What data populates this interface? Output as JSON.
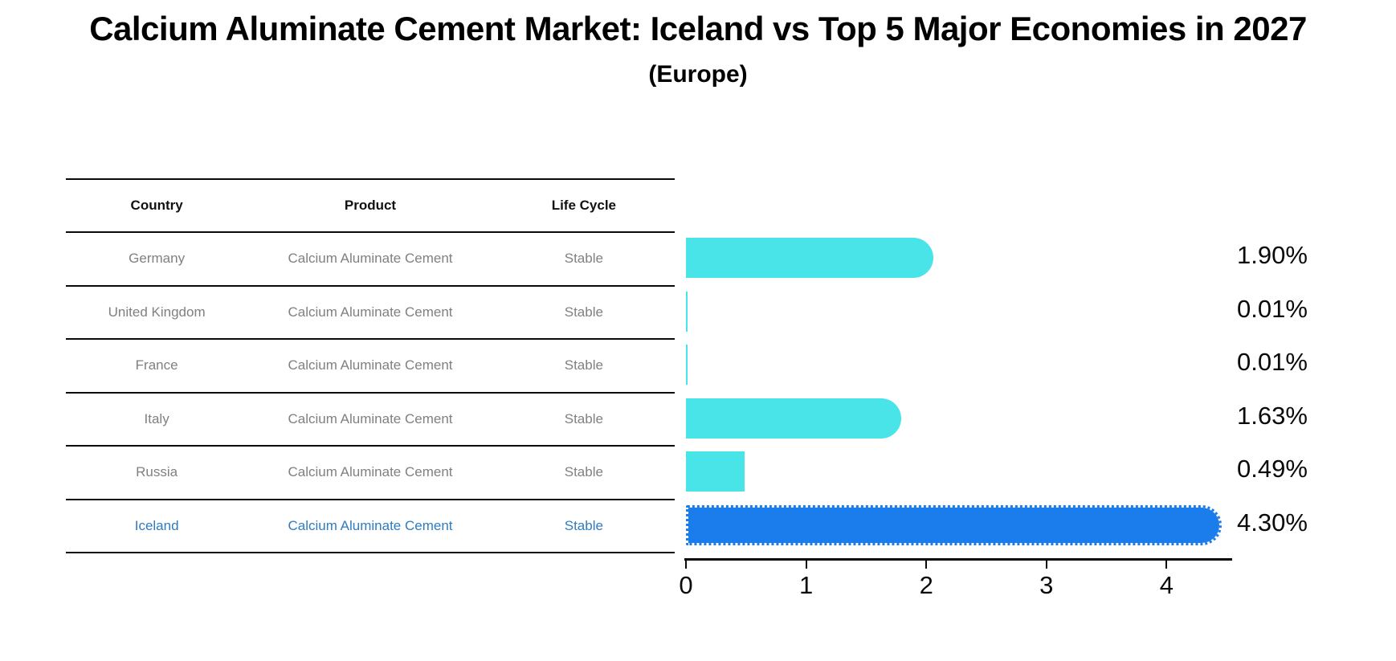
{
  "title": "Calcium Aluminate Cement Market: Iceland vs Top 5 Major Economies in 2027",
  "subtitle": "(Europe)",
  "table": {
    "headers": [
      "Country",
      "Product",
      "Life Cycle"
    ],
    "rows": [
      {
        "country": "Germany",
        "product": "Calcium Aluminate Cement",
        "life_cycle": "Stable",
        "highlight": false
      },
      {
        "country": "United Kingdom",
        "product": "Calcium Aluminate Cement",
        "life_cycle": "Stable",
        "highlight": false
      },
      {
        "country": "France",
        "product": "Calcium Aluminate Cement",
        "life_cycle": "Stable",
        "highlight": false
      },
      {
        "country": "Italy",
        "product": "Calcium Aluminate Cement",
        "life_cycle": "Stable",
        "highlight": false
      },
      {
        "country": "Russia",
        "product": "Calcium Aluminate Cement",
        "life_cycle": "Stable",
        "highlight": false
      },
      {
        "country": "Iceland",
        "product": "Calcium Aluminate Cement",
        "life_cycle": "Stable",
        "highlight": true
      }
    ]
  },
  "chart_data": {
    "type": "bar",
    "orientation": "horizontal",
    "title": "Calcium Aluminate Cement Market: Iceland vs Top 5 Major Economies in 2027",
    "subtitle": "(Europe)",
    "categories": [
      "Germany",
      "United Kingdom",
      "France",
      "Italy",
      "Russia",
      "Iceland"
    ],
    "values": [
      1.9,
      0.01,
      0.01,
      1.63,
      0.49,
      4.3
    ],
    "value_labels": [
      "1.90%",
      "0.01%",
      "0.01%",
      "1.63%",
      "0.49%",
      "4.30%"
    ],
    "x_tick_labels": [
      "0",
      "1",
      "2",
      "3",
      "4"
    ],
    "x_ticks": [
      0,
      1,
      2,
      3,
      4
    ],
    "xlim": [
      0,
      4.53
    ],
    "highlight_index": 5,
    "grid": false,
    "legend": null,
    "xlabel": "",
    "ylabel": ""
  },
  "colors": {
    "bar_primary": "#48E4E8",
    "bar_highlight": "#1B7CEC",
    "highlight_text": "#2E7CBF",
    "row_text": "#808080",
    "header_text": "#111111",
    "axis": "#0A0A0A"
  }
}
